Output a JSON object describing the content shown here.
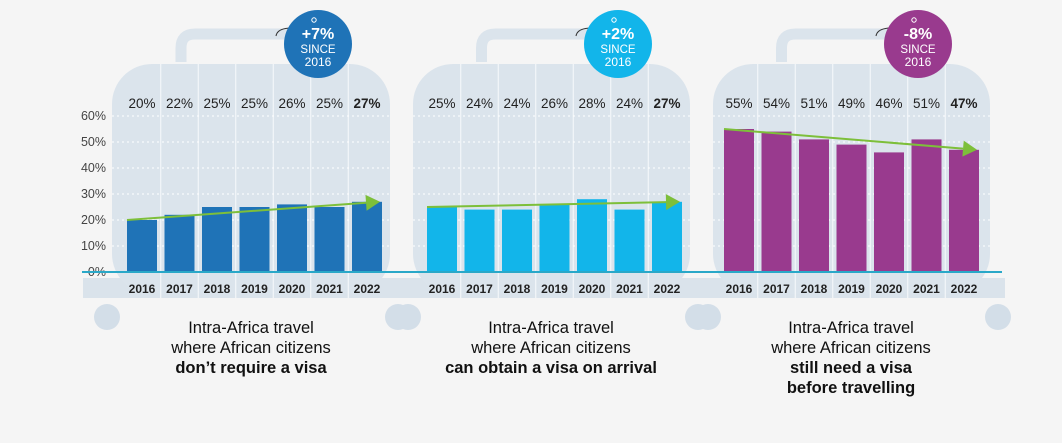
{
  "chart_data": [
    {
      "type": "bar",
      "title": "Intra-Africa travel where African citizens don't require a visa",
      "categories": [
        "2016",
        "2017",
        "2018",
        "2019",
        "2020",
        "2021",
        "2022"
      ],
      "values": [
        20,
        22,
        25,
        25,
        26,
        25,
        27
      ],
      "value_labels": [
        "20%",
        "22%",
        "25%",
        "25%",
        "26%",
        "25%",
        "27%"
      ],
      "ylim": [
        0,
        60
      ],
      "yticks": [
        "0%",
        "10%",
        "20%",
        "30%",
        "40%",
        "50%",
        "60%"
      ],
      "trend": {
        "from": 20,
        "to": 27
      },
      "badge": {
        "line1": "+7%",
        "line2": "SINCE",
        "line3": "2016"
      },
      "color": "#1f73b7",
      "caption": {
        "line1": "Intra-Africa travel",
        "line2": "where African citizens",
        "bold1": "don’t require a visa",
        "bold2": ""
      }
    },
    {
      "type": "bar",
      "title": "Intra-Africa travel where African citizens can obtain a visa on arrival",
      "categories": [
        "2016",
        "2017",
        "2018",
        "2019",
        "2020",
        "2021",
        "2022"
      ],
      "values": [
        25,
        24,
        24,
        26,
        28,
        24,
        27
      ],
      "value_labels": [
        "25%",
        "24%",
        "24%",
        "26%",
        "28%",
        "24%",
        "27%"
      ],
      "ylim": [
        0,
        60
      ],
      "trend": {
        "from": 25,
        "to": 27
      },
      "badge": {
        "line1": "+2%",
        "line2": "SINCE",
        "line3": "2016"
      },
      "color": "#12b5ea",
      "caption": {
        "line1": "Intra-Africa travel",
        "line2": "where African citizens",
        "bold1": "can obtain a visa on arrival",
        "bold2": ""
      }
    },
    {
      "type": "bar",
      "title": "Intra-Africa travel where African citizens still need a visa before travelling",
      "categories": [
        "2016",
        "2017",
        "2018",
        "2019",
        "2020",
        "2021",
        "2022"
      ],
      "values": [
        55,
        54,
        51,
        49,
        46,
        51,
        47
      ],
      "value_labels": [
        "55%",
        "54%",
        "51%",
        "49%",
        "46%",
        "51%",
        "47%"
      ],
      "ylim": [
        0,
        60
      ],
      "trend": {
        "from": 55,
        "to": 47
      },
      "badge": {
        "line1": "-8%",
        "line2": "SINCE",
        "line3": "2016"
      },
      "color": "#993a8e",
      "caption": {
        "line1": "Intra-Africa travel",
        "line2": "where African citizens",
        "bold1": "still need a visa",
        "bold2": "before travelling"
      }
    }
  ],
  "colors": {
    "suitcase": "#dbe4ec",
    "wheel": "#d3dee8",
    "baseline": "#2aa8c8",
    "axis_band": "#dae3eb",
    "trend_arrow": "#7dbf3a"
  }
}
